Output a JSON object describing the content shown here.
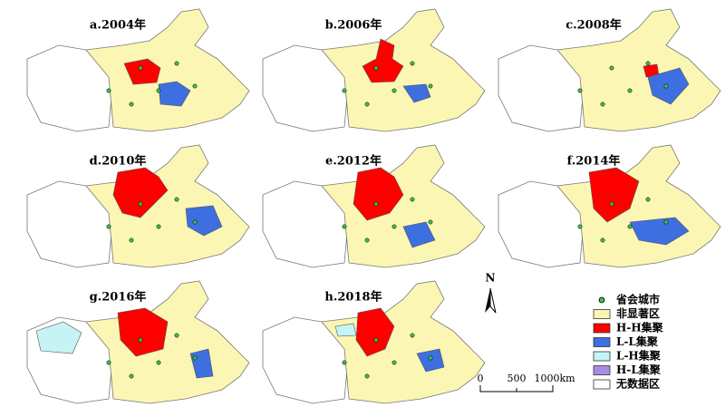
{
  "panels": [
    {
      "title": "a.2004年"
    },
    {
      "title": "b.2006年"
    },
    {
      "title": "c.2008年"
    },
    {
      "title": "d.2010年"
    },
    {
      "title": "e.2012年"
    },
    {
      "title": "f.2014年"
    },
    {
      "title": "g.2016年"
    },
    {
      "title": "h.2018年"
    }
  ],
  "legend": {
    "items": [
      {
        "label": "省会城市",
        "color": "#3fbf3f"
      },
      {
        "label": "非显著区",
        "color": "#fbf6b4"
      },
      {
        "label": "H-H集聚",
        "color": "#ff0000"
      },
      {
        "label": "L-L集聚",
        "color": "#3d6fe0"
      },
      {
        "label": "L-H集聚",
        "color": "#c6f3f6"
      },
      {
        "label": "H-L集聚",
        "color": "#a98ae8"
      },
      {
        "label": "无数据区",
        "color": "#ffffff"
      }
    ]
  },
  "north": "N",
  "scale": {
    "labels": [
      "0",
      "500",
      "1000km"
    ]
  }
}
